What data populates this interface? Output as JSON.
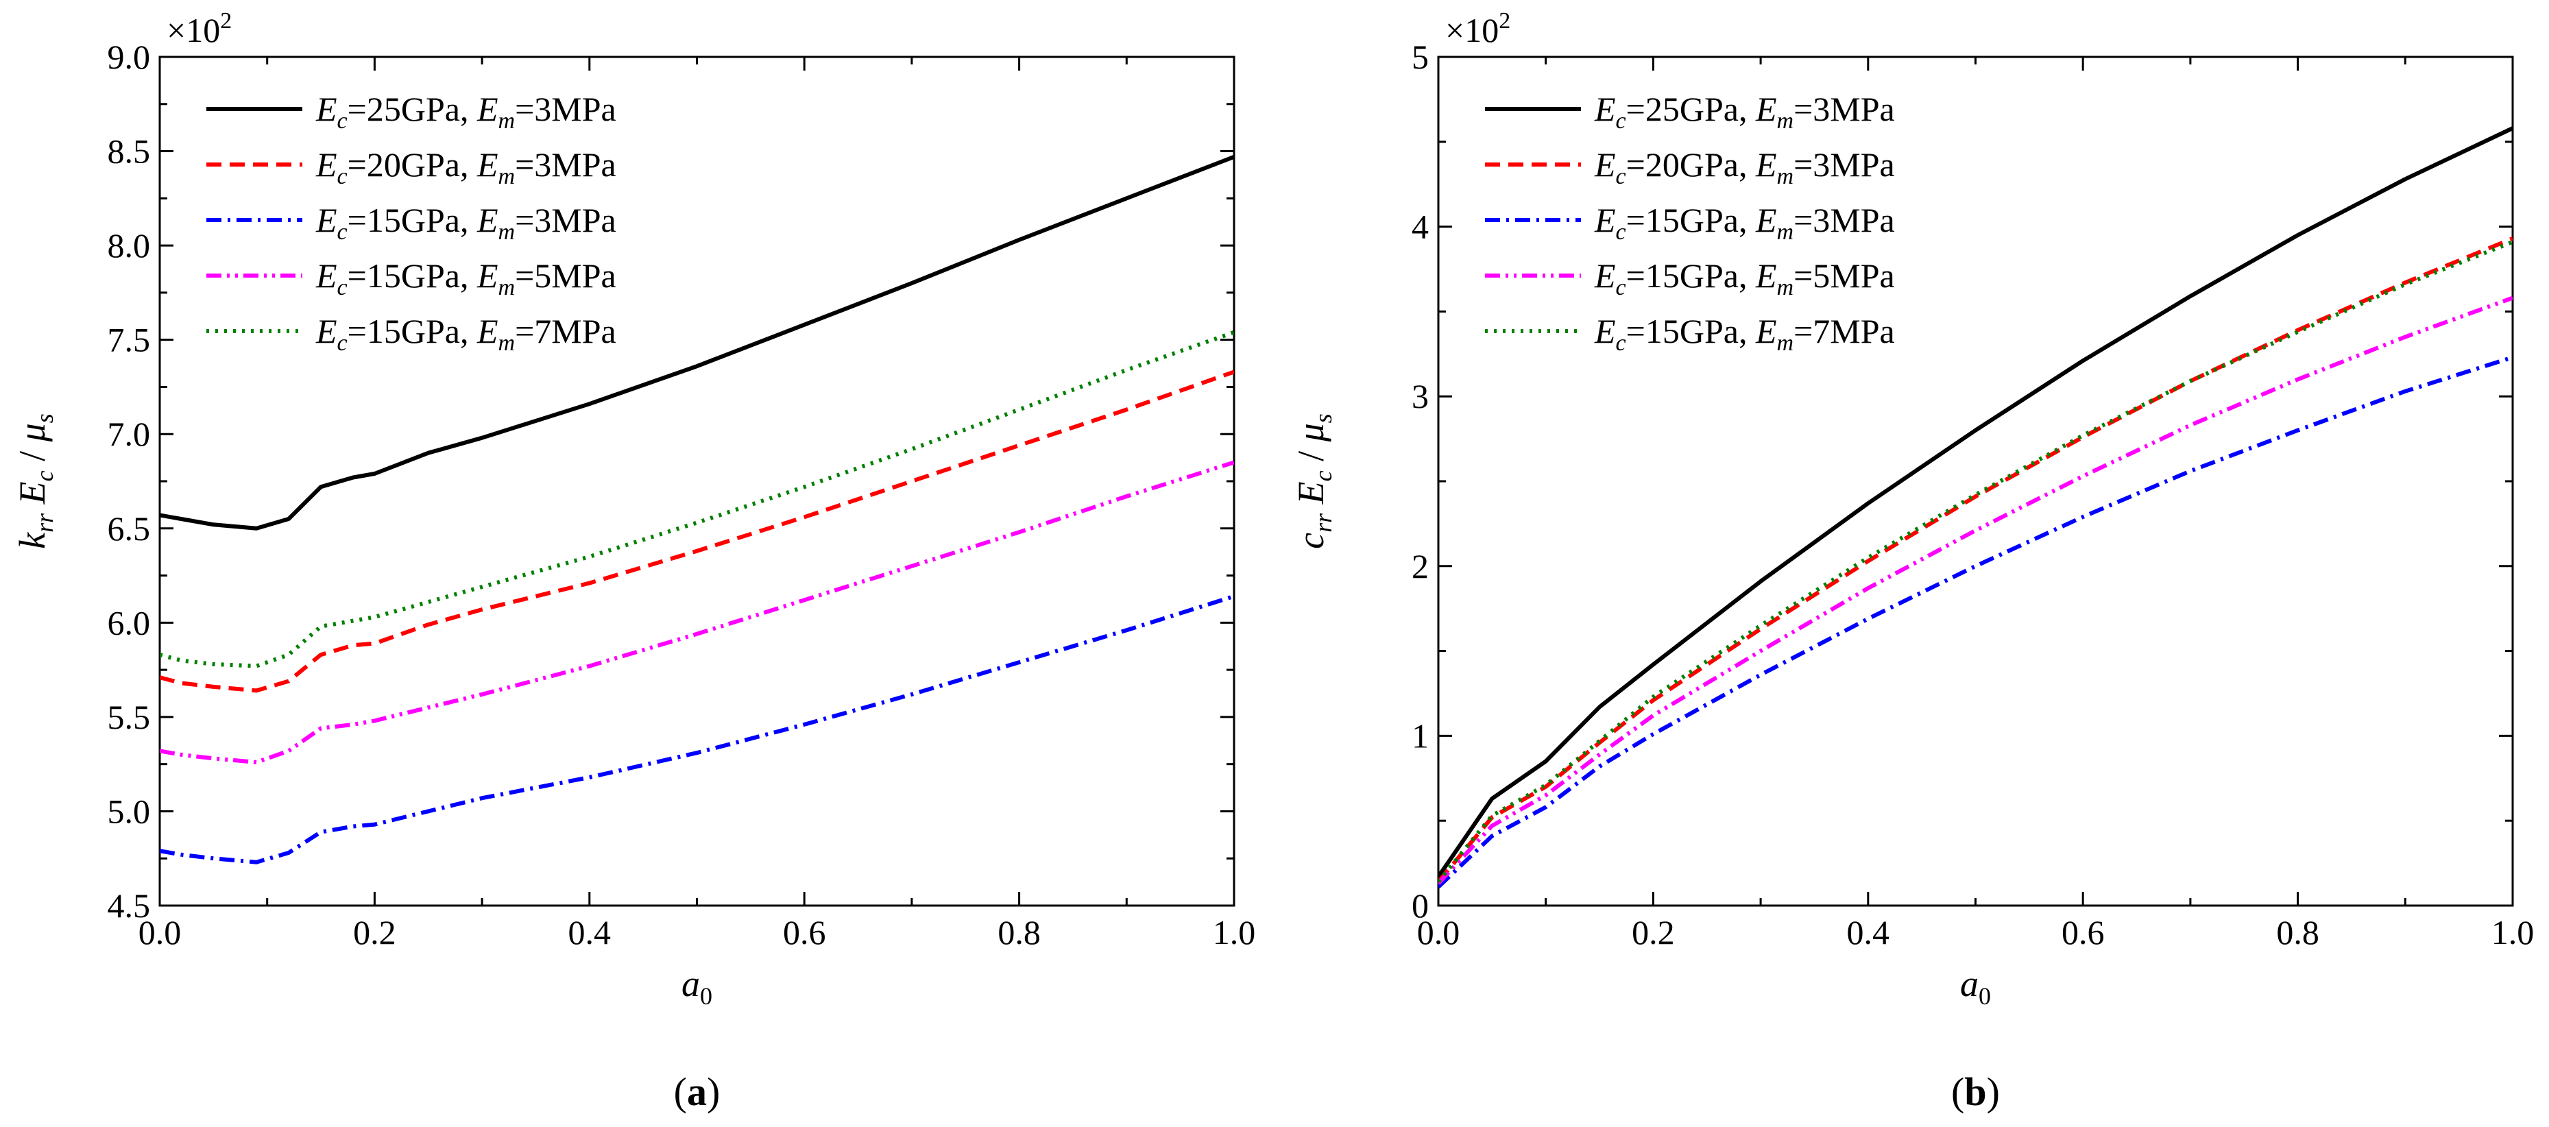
{
  "chart_data": [
    {
      "panel_label": "(a)",
      "panel_label_parts": {
        "open": "(",
        "letter": "a",
        "close": ")"
      },
      "type": "line",
      "multiplier": {
        "base": "×10",
        "exp": "2"
      },
      "xlabel": {
        "base": "a",
        "sub": "0"
      },
      "ylabel": {
        "k": "k",
        "k_sub": "rr",
        "e": "E",
        "e_sub": "c",
        "slash": " / ",
        "mu": "μ",
        "mu_sub": "s"
      },
      "xlim": [
        0,
        1
      ],
      "ylim": [
        4.5,
        9.0
      ],
      "xticks": [
        0,
        0.2,
        0.4,
        0.6,
        0.8,
        1.0
      ],
      "xtick_labels": [
        "0.0",
        "0.2",
        "0.4",
        "0.6",
        "0.8",
        "1.0"
      ],
      "yticks": [
        4.5,
        5.0,
        5.5,
        6.0,
        6.5,
        7.0,
        7.5,
        8.0,
        8.5,
        9.0
      ],
      "ytick_labels": [
        "4.5",
        "5.0",
        "5.5",
        "6.0",
        "6.5",
        "7.0",
        "7.5",
        "8.0",
        "8.5",
        "9.0"
      ],
      "legend_position": "top-left",
      "x": [
        0,
        0.02,
        0.05,
        0.09,
        0.12,
        0.15,
        0.18,
        0.2,
        0.25,
        0.3,
        0.4,
        0.5,
        0.6,
        0.7,
        0.8,
        0.9,
        1.0
      ],
      "series": [
        {
          "name": "Ec=25GPa, Em=3MPa",
          "label": {
            "e1": "E",
            "s1": "c",
            "v1": "=25GPa, ",
            "e2": "E",
            "s2": "m",
            "v2": "=3MPa"
          },
          "color": "#000000",
          "dash": "solid",
          "values": [
            6.57,
            6.55,
            6.52,
            6.5,
            6.55,
            6.72,
            6.77,
            6.79,
            6.9,
            6.98,
            7.16,
            7.36,
            7.58,
            7.8,
            8.03,
            8.25,
            8.47
          ]
        },
        {
          "name": "Ec=20GPa, Em=3MPa",
          "label": {
            "e1": "E",
            "s1": "c",
            "v1": "=20GPa, ",
            "e2": "E",
            "s2": "m",
            "v2": "=3MPa"
          },
          "color": "#ff0000",
          "dash": "dash",
          "values": [
            5.71,
            5.68,
            5.66,
            5.64,
            5.69,
            5.83,
            5.88,
            5.89,
            5.99,
            6.07,
            6.21,
            6.38,
            6.56,
            6.75,
            6.94,
            7.13,
            7.33
          ]
        },
        {
          "name": "Ec=15GPa, Em=3MPa",
          "label": {
            "e1": "E",
            "s1": "c",
            "v1": "=15GPa, ",
            "e2": "E",
            "s2": "m",
            "v2": "=3MPa"
          },
          "color": "#0000ff",
          "dash": "dashdot",
          "values": [
            4.79,
            4.77,
            4.75,
            4.73,
            4.78,
            4.89,
            4.92,
            4.93,
            5.0,
            5.07,
            5.18,
            5.31,
            5.46,
            5.62,
            5.79,
            5.96,
            6.14
          ]
        },
        {
          "name": "Ec=15GPa, Em=5MPa",
          "label": {
            "e1": "E",
            "s1": "c",
            "v1": "=15GPa, ",
            "e2": "E",
            "s2": "m",
            "v2": "=5MPa"
          },
          "color": "#ff00ff",
          "dash": "dashdotdot",
          "values": [
            5.32,
            5.3,
            5.28,
            5.26,
            5.32,
            5.44,
            5.46,
            5.48,
            5.55,
            5.62,
            5.77,
            5.94,
            6.12,
            6.3,
            6.48,
            6.67,
            6.85
          ]
        },
        {
          "name": "Ec=15GPa, Em=7MPa",
          "label": {
            "e1": "E",
            "s1": "c",
            "v1": "=15GPa, ",
            "e2": "E",
            "s2": "m",
            "v2": "=7MPa"
          },
          "color": "#008000",
          "dash": "dot",
          "values": [
            5.83,
            5.8,
            5.78,
            5.77,
            5.83,
            5.98,
            6.01,
            6.03,
            6.11,
            6.19,
            6.35,
            6.53,
            6.72,
            6.92,
            7.13,
            7.34,
            7.54
          ]
        }
      ]
    },
    {
      "panel_label": "(b)",
      "panel_label_parts": {
        "open": "(",
        "letter": "b",
        "close": ")"
      },
      "type": "line",
      "multiplier": {
        "base": "×10",
        "exp": "2"
      },
      "xlabel": {
        "base": "a",
        "sub": "0"
      },
      "ylabel": {
        "k": "c",
        "k_sub": "rr",
        "e": "E",
        "e_sub": "c",
        "slash": " / ",
        "mu": "μ",
        "mu_sub": "s"
      },
      "xlim": [
        0,
        1
      ],
      "ylim": [
        0,
        5
      ],
      "xticks": [
        0,
        0.2,
        0.4,
        0.6,
        0.8,
        1.0
      ],
      "xtick_labels": [
        "0.0",
        "0.2",
        "0.4",
        "0.6",
        "0.8",
        "1.0"
      ],
      "yticks": [
        0,
        1,
        2,
        3,
        4,
        5
      ],
      "ytick_labels": [
        "0",
        "1",
        "2",
        "3",
        "4",
        "5"
      ],
      "legend_position": "top-left",
      "x": [
        0,
        0.05,
        0.1,
        0.15,
        0.2,
        0.3,
        0.4,
        0.5,
        0.6,
        0.7,
        0.8,
        0.9,
        1.0
      ],
      "series": [
        {
          "name": "Ec=25GPa, Em=3MPa",
          "label": {
            "e1": "E",
            "s1": "c",
            "v1": "=25GPa, ",
            "e2": "E",
            "s2": "m",
            "v2": "=3MPa"
          },
          "color": "#000000",
          "dash": "solid",
          "values": [
            0.17,
            0.63,
            0.85,
            1.17,
            1.42,
            1.91,
            2.37,
            2.8,
            3.21,
            3.59,
            3.95,
            4.28,
            4.58
          ]
        },
        {
          "name": "Ec=20GPa, Em=3MPa",
          "label": {
            "e1": "E",
            "s1": "c",
            "v1": "=20GPa, ",
            "e2": "E",
            "s2": "m",
            "v2": "=3MPa"
          },
          "color": "#ff0000",
          "dash": "dash",
          "values": [
            0.14,
            0.52,
            0.7,
            0.96,
            1.21,
            1.63,
            2.03,
            2.41,
            2.76,
            3.09,
            3.39,
            3.67,
            3.93
          ]
        },
        {
          "name": "Ec=15GPa, Em=3MPa",
          "label": {
            "e1": "E",
            "s1": "c",
            "v1": "=15GPa, ",
            "e2": "E",
            "s2": "m",
            "v2": "=3MPa"
          },
          "color": "#0000ff",
          "dash": "dashdot",
          "values": [
            0.11,
            0.41,
            0.58,
            0.82,
            1.01,
            1.36,
            1.69,
            2.0,
            2.29,
            2.56,
            2.8,
            3.03,
            3.23
          ]
        },
        {
          "name": "Ec=15GPa, Em=5MPa",
          "label": {
            "e1": "E",
            "s1": "c",
            "v1": "=15GPa, ",
            "e2": "E",
            "s2": "m",
            "v2": "=5MPa"
          },
          "color": "#ff00ff",
          "dash": "dashdotdot",
          "values": [
            0.13,
            0.47,
            0.65,
            0.89,
            1.12,
            1.5,
            1.87,
            2.21,
            2.53,
            2.83,
            3.1,
            3.35,
            3.58
          ]
        },
        {
          "name": "Ec=15GPa, Em=7MPa",
          "label": {
            "e1": "E",
            "s1": "c",
            "v1": "=15GPa, ",
            "e2": "E",
            "s2": "m",
            "v2": "=7MPa"
          },
          "color": "#008000",
          "dash": "dot",
          "values": [
            0.14,
            0.53,
            0.71,
            0.97,
            1.23,
            1.65,
            2.05,
            2.42,
            2.77,
            3.09,
            3.38,
            3.66,
            3.91
          ]
        }
      ]
    }
  ]
}
